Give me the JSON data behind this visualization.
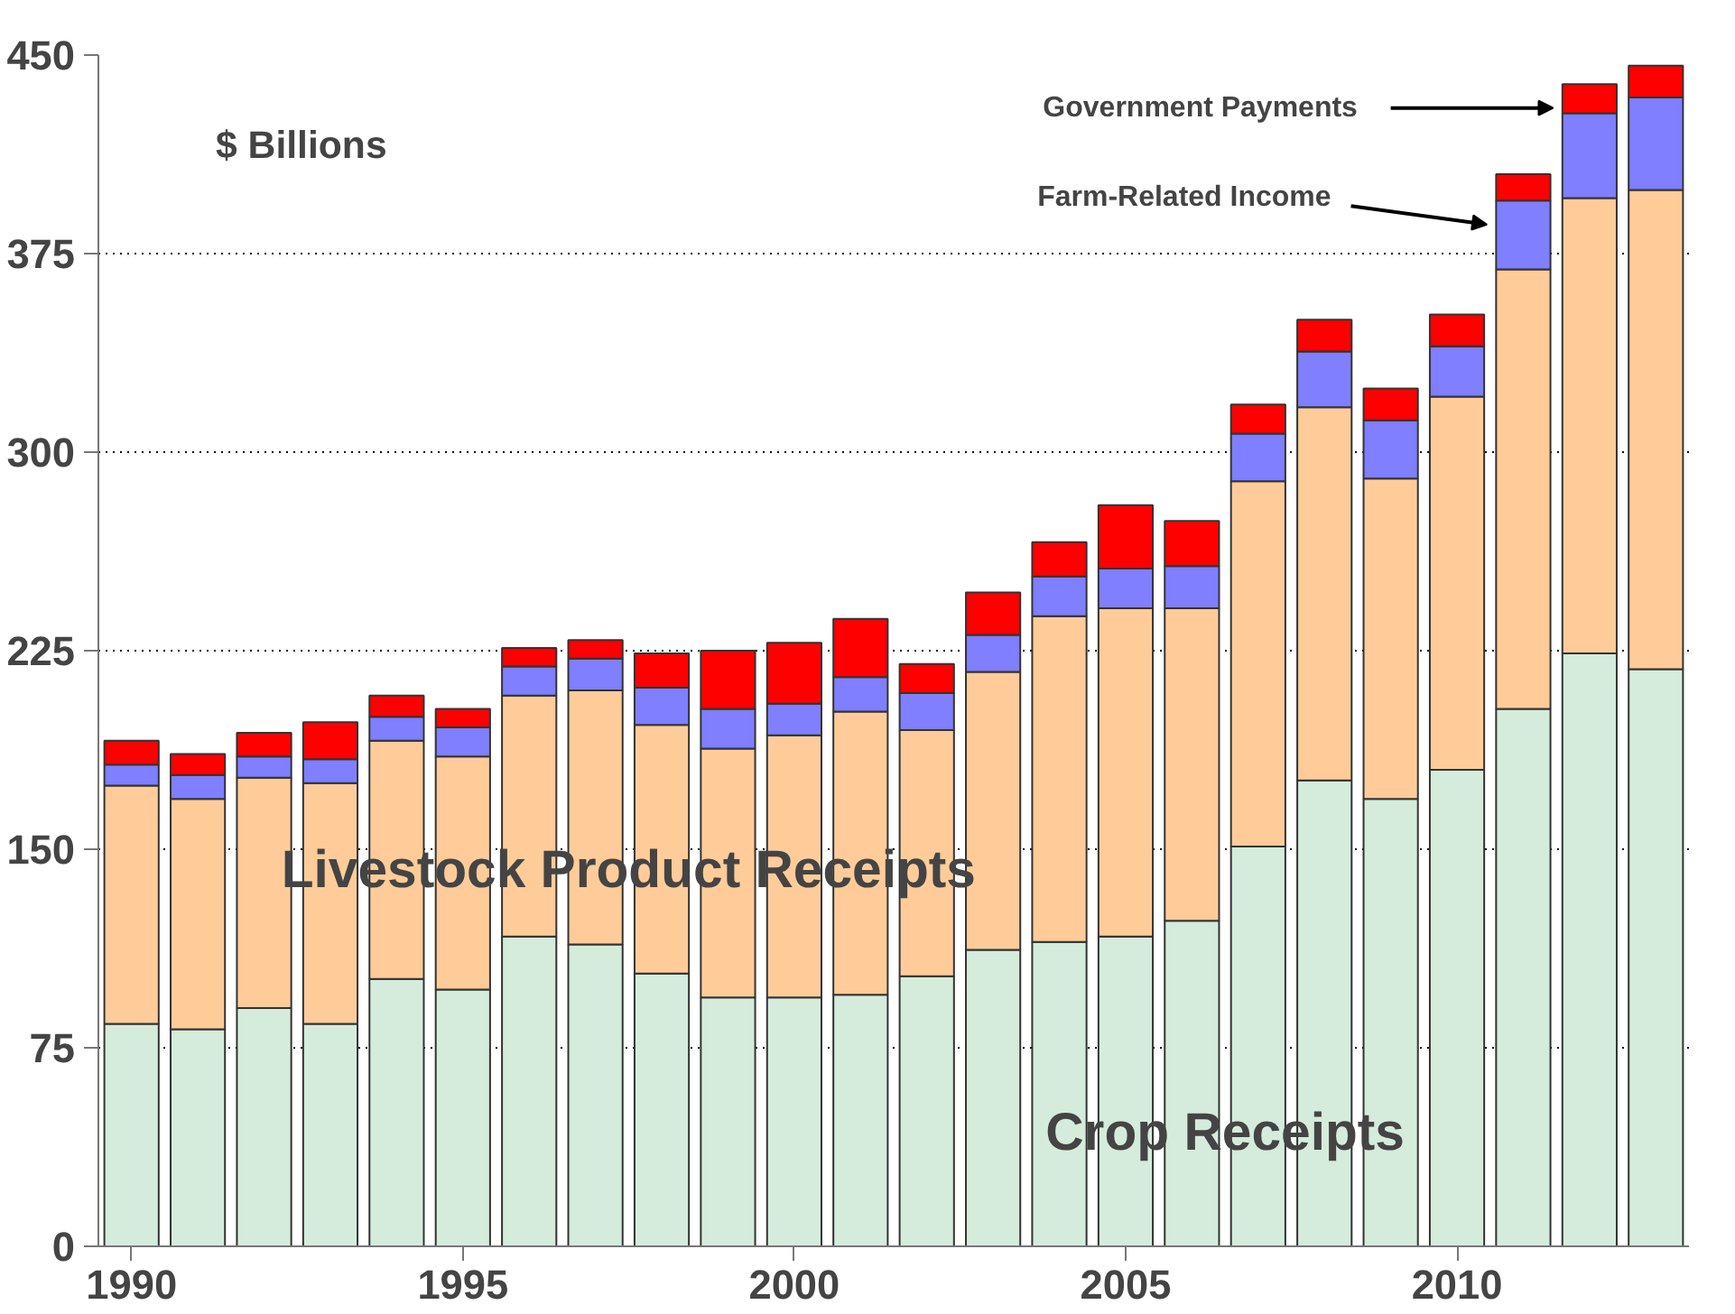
{
  "chart_data": {
    "type": "bar",
    "stacked": true,
    "x": [
      1990,
      1991,
      1992,
      1993,
      1994,
      1995,
      1996,
      1997,
      1998,
      1999,
      2000,
      2001,
      2002,
      2003,
      2004,
      2005,
      2006,
      2007,
      2008,
      2009,
      2010,
      2011,
      2012,
      2013
    ],
    "series": [
      {
        "name": "Crop Receipts",
        "color": "#d5ecdc",
        "values": [
          84,
          82,
          90,
          84,
          101,
          97,
          117,
          114,
          103,
          94,
          94,
          95,
          102,
          112,
          115,
          117,
          123,
          151,
          176,
          169,
          180,
          203,
          224,
          218
        ]
      },
      {
        "name": "Livestock Product Receipts",
        "color": "#ffcc99",
        "values": [
          90,
          87,
          87,
          91,
          90,
          88,
          91,
          96,
          94,
          94,
          99,
          107,
          93,
          105,
          123,
          124,
          118,
          138,
          141,
          121,
          141,
          166,
          172,
          181
        ]
      },
      {
        "name": "Farm-Related Income",
        "color": "#7f7fff",
        "values": [
          8,
          9,
          8,
          9,
          9,
          11,
          11,
          12,
          14,
          15,
          12,
          13,
          14,
          14,
          15,
          15,
          16,
          18,
          21,
          22,
          19,
          26,
          32,
          35
        ]
      },
      {
        "name": "Government Payments",
        "color": "#ff0000",
        "values": [
          9,
          8,
          9,
          14,
          8,
          7,
          7,
          7,
          13,
          22,
          23,
          22,
          11,
          16,
          13,
          24,
          17,
          11,
          12,
          12,
          12,
          10,
          11,
          12
        ]
      }
    ],
    "ylim": [
      0,
      450
    ],
    "yticks": [
      0,
      75,
      150,
      225,
      300,
      375,
      450
    ],
    "xlim": [
      1989.5,
      2013.5
    ],
    "xticks": [
      1990,
      1995,
      2000,
      2005,
      2010
    ],
    "grid": "y",
    "annotations": [
      "$ Billions"
    ]
  }
}
